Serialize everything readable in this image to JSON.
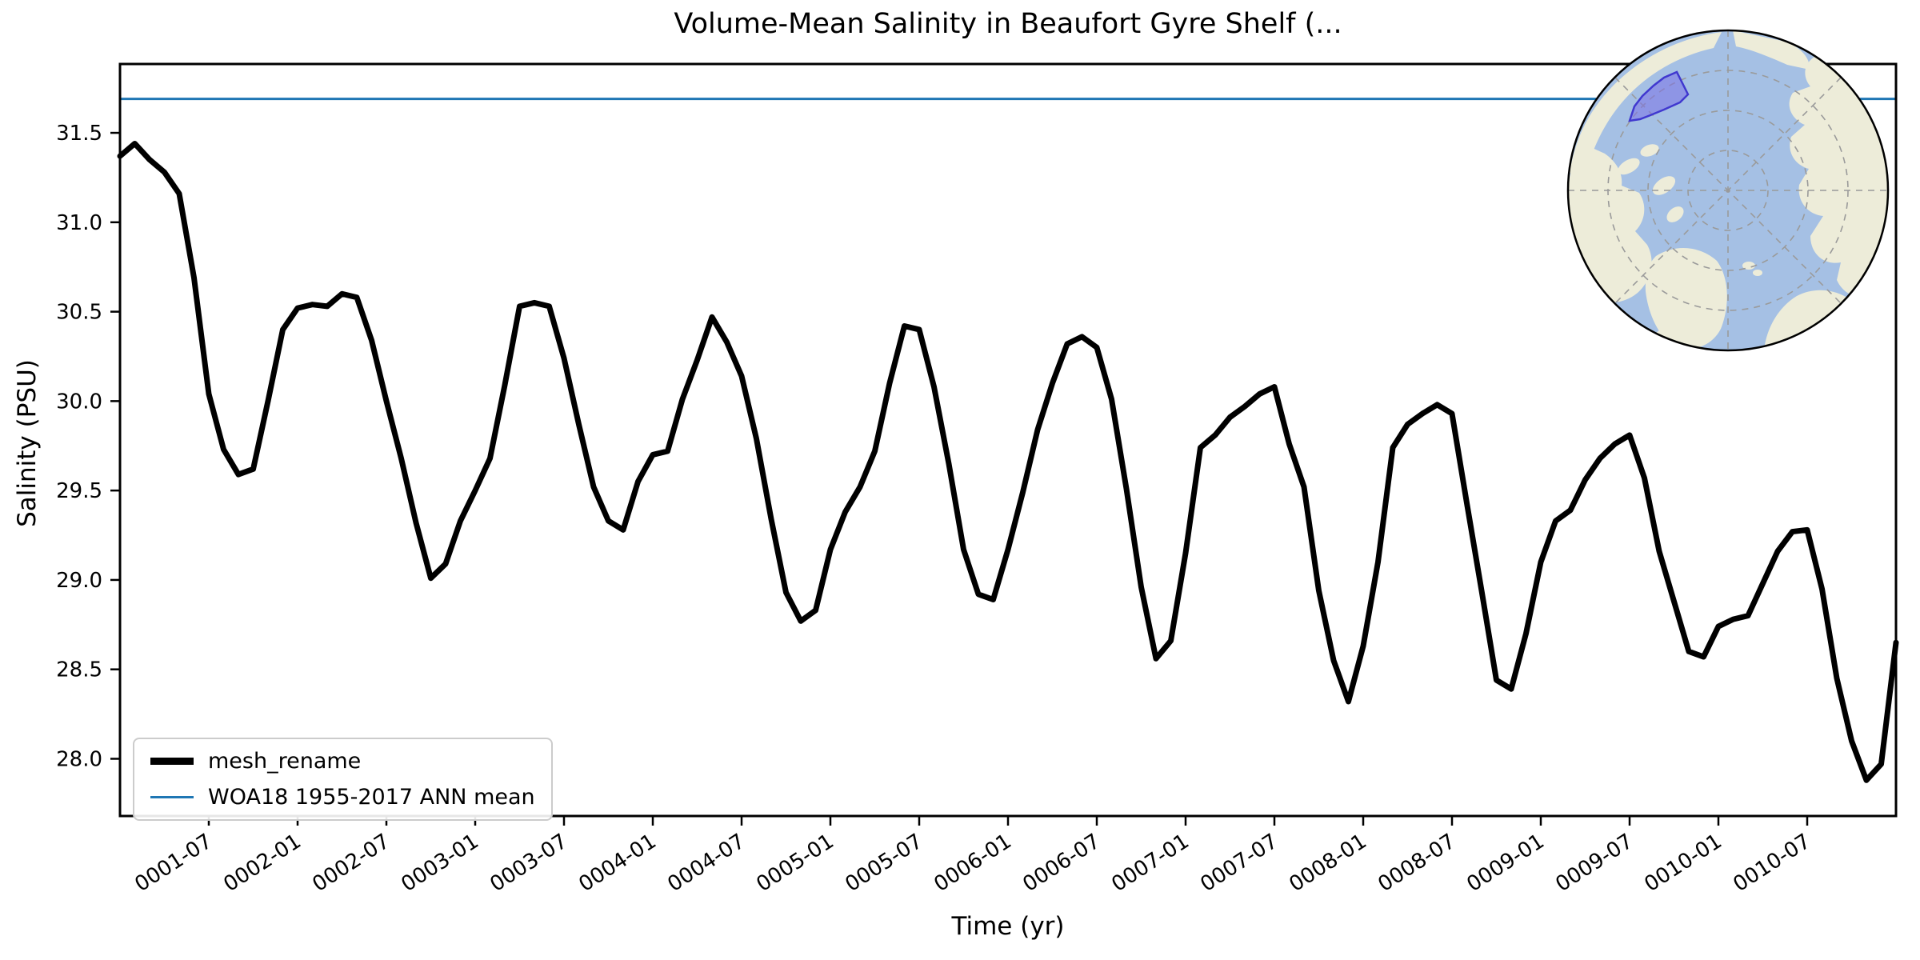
{
  "figure": {
    "title": "Volume-Mean Salinity in Beaufort Gyre Shelf (...",
    "xlabel": "Time (yr)",
    "ylabel": "Salinity (PSU)"
  },
  "legend": {
    "items": [
      {
        "label": "mesh_rename",
        "color": "#000000",
        "sample_thickness": 9
      },
      {
        "label": "WOA18 1955-2017 ANN mean",
        "color": "#1f77b4",
        "sample_thickness": 3
      }
    ]
  },
  "axes": {
    "y_tick_labels": [
      "31.5",
      "31.0",
      "30.5",
      "30.0",
      "29.5",
      "29.0",
      "28.5",
      "28.0"
    ],
    "y_tick_values": [
      31.5,
      31.0,
      30.5,
      30.0,
      29.5,
      29.0,
      28.5,
      28.0
    ],
    "x_tick_labels": [
      "0001-07",
      "0002-01",
      "0002-07",
      "0003-01",
      "0003-07",
      "0004-01",
      "0004-07",
      "0005-01",
      "0005-07",
      "0006-01",
      "0006-07",
      "0007-01",
      "0007-07",
      "0008-01",
      "0008-07",
      "0009-01",
      "0009-07",
      "0010-01",
      "0010-07"
    ]
  },
  "chart_data": {
    "type": "line",
    "title": "Volume-Mean Salinity in Beaufort Gyre Shelf (...",
    "xlabel": "Time (yr)",
    "ylabel": "Salinity (PSU)",
    "ylim": [
      27.68,
      31.885
    ],
    "grid": false,
    "legend_position": "lower left",
    "time_start": "0001-01",
    "time_end": "0011-01",
    "frequency": "monthly",
    "series": [
      {
        "name": "mesh_rename",
        "color": "#000000",
        "linewidth": 7,
        "values": [
          31.37,
          31.44,
          31.35,
          31.28,
          31.16,
          30.69,
          30.04,
          29.73,
          29.59,
          29.62,
          30.0,
          30.4,
          30.52,
          30.54,
          30.53,
          30.6,
          30.58,
          30.34,
          30.0,
          29.68,
          29.32,
          29.01,
          29.09,
          29.33,
          29.5,
          29.68,
          30.09,
          30.53,
          30.55,
          30.53,
          30.24,
          29.87,
          29.52,
          29.33,
          29.28,
          29.55,
          29.7,
          29.72,
          30.01,
          30.23,
          30.47,
          30.33,
          30.14,
          29.79,
          29.34,
          28.93,
          28.77,
          28.83,
          29.17,
          29.38,
          29.52,
          29.72,
          30.1,
          30.42,
          30.4,
          30.08,
          29.65,
          29.17,
          28.92,
          28.89,
          29.17,
          29.49,
          29.84,
          30.1,
          30.32,
          30.36,
          30.3,
          30.01,
          29.51,
          28.96,
          28.56,
          28.66,
          29.15,
          29.74,
          29.81,
          29.91,
          29.97,
          30.04,
          30.08,
          29.76,
          29.52,
          28.94,
          28.55,
          28.32,
          28.63,
          29.1,
          29.74,
          29.87,
          29.93,
          29.98,
          29.93,
          29.43,
          28.94,
          28.44,
          28.39,
          28.7,
          29.1,
          29.33,
          29.39,
          29.56,
          29.68,
          29.76,
          29.81,
          29.57,
          29.16,
          28.88,
          28.6,
          28.57,
          28.74,
          28.78,
          28.8,
          28.98,
          29.16,
          29.27,
          29.28,
          28.95,
          28.45,
          28.1,
          27.88,
          27.97,
          28.65
        ]
      },
      {
        "name": "WOA18 1955-2017 ANN mean",
        "color": "#1f77b4",
        "linewidth": 3,
        "constant_value": 31.69
      }
    ]
  },
  "inset_map": {
    "projection": "north-polar",
    "ocean_color": "#a5c0e4",
    "land_color": "#edecd9",
    "graticule_color": "#9a9a9a",
    "region_fill": "#7c71e5",
    "region_edge": "#4038cf",
    "border_color": "#000000"
  }
}
